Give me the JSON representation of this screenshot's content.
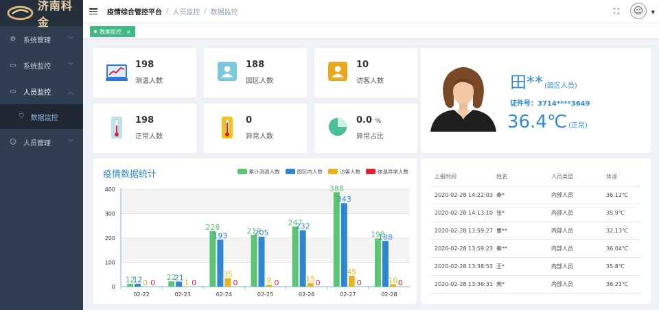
{
  "app": {
    "logo_text": "济南科金",
    "title": "疫情综合管控平台"
  },
  "sidebar": {
    "items": [
      {
        "label": "系统管理",
        "icon": "gear-icon"
      },
      {
        "label": "系统监控",
        "icon": "monitor-icon"
      },
      {
        "label": "人员监控",
        "icon": "monitor-icon"
      },
      {
        "label": "数据监控",
        "icon": "shield-icon"
      },
      {
        "label": "人员管理",
        "icon": "user-icon"
      }
    ]
  },
  "breadcrumb": {
    "level1": "人员监控",
    "level2": "数据监控"
  },
  "tabs": {
    "active": "数据监控",
    "close": "×"
  },
  "stats": [
    {
      "value": "198",
      "label": "测温人数",
      "icon": "chart-icon"
    },
    {
      "value": "188",
      "label": "园区人数",
      "icon": "id-card-icon"
    },
    {
      "value": "10",
      "label": "访客人数",
      "icon": "visitor-icon"
    },
    {
      "value": "198",
      "label": "正常人数",
      "icon": "thermometer-icon"
    },
    {
      "value": "0",
      "label": "异常人数",
      "icon": "thermometer-icon"
    },
    {
      "value": "0.0",
      "unit": "%",
      "label": "异常占比",
      "icon": "pie-icon"
    }
  ],
  "person": {
    "name": "田**",
    "role": "(园区人员)",
    "id_label": "证件号：3714****3649",
    "temperature": "36.4℃",
    "status": "(正常)"
  },
  "chart_data": {
    "type": "bar",
    "title": "疫情数据统计",
    "categories": [
      "02-22",
      "02-23",
      "02-24",
      "02-25",
      "02-26",
      "02-27",
      "02-28"
    ],
    "series": [
      {
        "name": "累计测温人数",
        "color": "#5cc475",
        "values": [
          12,
          22,
          228,
          212,
          247,
          388,
          198
        ]
      },
      {
        "name": "园区内人数",
        "color": "#2f86d3",
        "values": [
          12,
          21,
          193,
          205,
          232,
          343,
          188
        ]
      },
      {
        "name": "访客人数",
        "color": "#e8b320",
        "values": [
          0,
          1,
          35,
          8,
          15,
          45,
          10
        ]
      },
      {
        "name": "体温异常人数",
        "color": "#e0242f",
        "values": [
          0,
          0,
          0,
          0,
          0,
          0,
          0
        ]
      }
    ],
    "ylim": [
      0,
      400
    ],
    "yticks": [
      0,
      100,
      200,
      300,
      400
    ],
    "grid": true,
    "legend": "top-right"
  },
  "records": {
    "headers": [
      "上报时间",
      "姓名",
      "人员类型",
      "体温"
    ],
    "rows": [
      [
        "2020-02-28 14:22:03",
        "秦*",
        "内部人员",
        "36.12℃"
      ],
      [
        "2020-02-28 14:13:10",
        "张*",
        "内部人员",
        "35.9℃"
      ],
      [
        "2020-02-28 13:59:27",
        "曹**",
        "内部人员",
        "32.13℃"
      ],
      [
        "2020-02-28 13:59:23",
        "秦**",
        "内部人员",
        "36.04℃"
      ],
      [
        "2020-02-28 13:38:53",
        "王*",
        "内部人员",
        "35.8℃"
      ],
      [
        "2020-02-28 13:36:31",
        "燕*",
        "内部人员",
        "36.21℃"
      ]
    ]
  }
}
